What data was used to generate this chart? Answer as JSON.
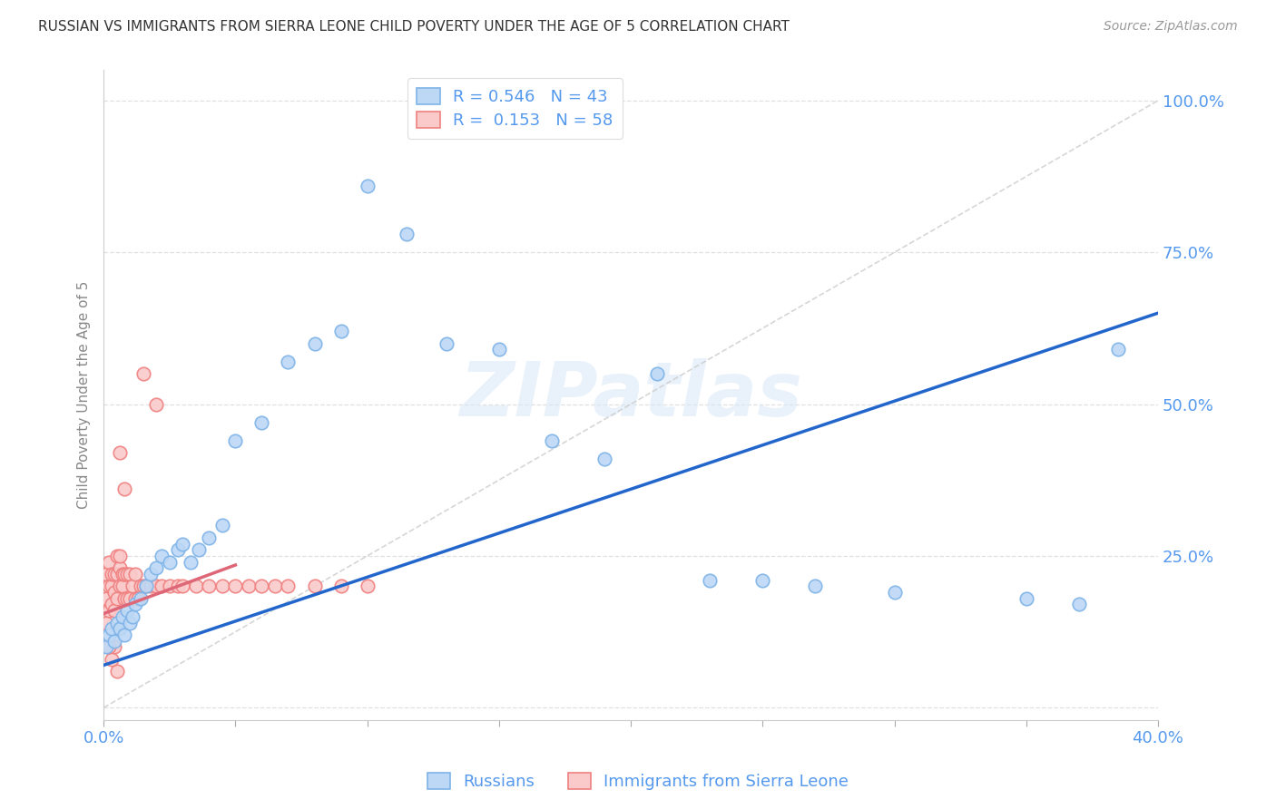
{
  "title": "RUSSIAN VS IMMIGRANTS FROM SIERRA LEONE CHILD POVERTY UNDER THE AGE OF 5 CORRELATION CHART",
  "source": "Source: ZipAtlas.com",
  "ylabel_label": "Child Poverty Under the Age of 5",
  "xlim": [
    0.0,
    0.4
  ],
  "ylim": [
    -0.02,
    1.05
  ],
  "xticks": [
    0.0,
    0.05,
    0.1,
    0.15,
    0.2,
    0.25,
    0.3,
    0.35,
    0.4
  ],
  "xticklabels": [
    "0.0%",
    "",
    "",
    "",
    "",
    "",
    "",
    "",
    "40.0%"
  ],
  "yticks": [
    0.0,
    0.25,
    0.5,
    0.75,
    1.0
  ],
  "yticklabels": [
    "",
    "25.0%",
    "50.0%",
    "75.0%",
    "100.0%"
  ],
  "grid_color": "#e0e0e0",
  "background_color": "#ffffff",
  "russians_fill": "#BDD8F5",
  "russians_edge": "#7EB3E8",
  "sierra_fill": "#FACACA",
  "sierra_edge": "#F08080",
  "blue_line_color": "#2266CC",
  "pink_line_color": "#DD6677",
  "diag_line_color": "#cccccc",
  "legend_R_blue": "0.546",
  "legend_N_blue": "43",
  "legend_R_pink": "0.153",
  "legend_N_pink": "58",
  "legend_label_blue": "Russians",
  "legend_label_pink": "Immigrants from Sierra Leone",
  "watermark": "ZIPatlas",
  "tick_color": "#5599EE",
  "ylabel_color": "#888888",
  "title_color": "#333333",
  "source_color": "#999999",
  "russians_x": [
    0.001,
    0.002,
    0.003,
    0.004,
    0.005,
    0.006,
    0.007,
    0.008,
    0.009,
    0.01,
    0.011,
    0.012,
    0.014,
    0.016,
    0.018,
    0.02,
    0.022,
    0.025,
    0.028,
    0.03,
    0.033,
    0.036,
    0.04,
    0.045,
    0.05,
    0.06,
    0.07,
    0.08,
    0.09,
    0.1,
    0.115,
    0.13,
    0.15,
    0.17,
    0.19,
    0.21,
    0.23,
    0.25,
    0.27,
    0.3,
    0.35,
    0.37,
    0.385
  ],
  "russians_y": [
    0.1,
    0.12,
    0.13,
    0.11,
    0.14,
    0.13,
    0.15,
    0.12,
    0.16,
    0.14,
    0.15,
    0.17,
    0.18,
    0.2,
    0.22,
    0.23,
    0.25,
    0.24,
    0.26,
    0.27,
    0.24,
    0.26,
    0.28,
    0.3,
    0.44,
    0.47,
    0.57,
    0.6,
    0.62,
    0.86,
    0.78,
    0.6,
    0.59,
    0.44,
    0.41,
    0.55,
    0.21,
    0.21,
    0.2,
    0.19,
    0.18,
    0.17,
    0.59
  ],
  "sierra_leone_x": [
    0.001,
    0.001,
    0.001,
    0.002,
    0.002,
    0.002,
    0.003,
    0.003,
    0.003,
    0.004,
    0.004,
    0.004,
    0.005,
    0.005,
    0.005,
    0.006,
    0.006,
    0.006,
    0.007,
    0.007,
    0.008,
    0.008,
    0.009,
    0.009,
    0.01,
    0.01,
    0.011,
    0.012,
    0.012,
    0.013,
    0.014,
    0.015,
    0.016,
    0.018,
    0.02,
    0.022,
    0.025,
    0.028,
    0.03,
    0.035,
    0.04,
    0.045,
    0.05,
    0.055,
    0.06,
    0.065,
    0.07,
    0.08,
    0.09,
    0.1,
    0.015,
    0.02,
    0.008,
    0.005,
    0.003,
    0.004,
    0.002,
    0.006
  ],
  "sierra_leone_y": [
    0.14,
    0.18,
    0.22,
    0.2,
    0.24,
    0.16,
    0.17,
    0.2,
    0.22,
    0.16,
    0.19,
    0.22,
    0.18,
    0.22,
    0.25,
    0.2,
    0.23,
    0.25,
    0.2,
    0.22,
    0.18,
    0.22,
    0.18,
    0.22,
    0.18,
    0.22,
    0.2,
    0.18,
    0.22,
    0.18,
    0.2,
    0.2,
    0.2,
    0.2,
    0.2,
    0.2,
    0.2,
    0.2,
    0.2,
    0.2,
    0.2,
    0.2,
    0.2,
    0.2,
    0.2,
    0.2,
    0.2,
    0.2,
    0.2,
    0.2,
    0.55,
    0.5,
    0.36,
    0.06,
    0.08,
    0.1,
    0.1,
    0.42
  ]
}
